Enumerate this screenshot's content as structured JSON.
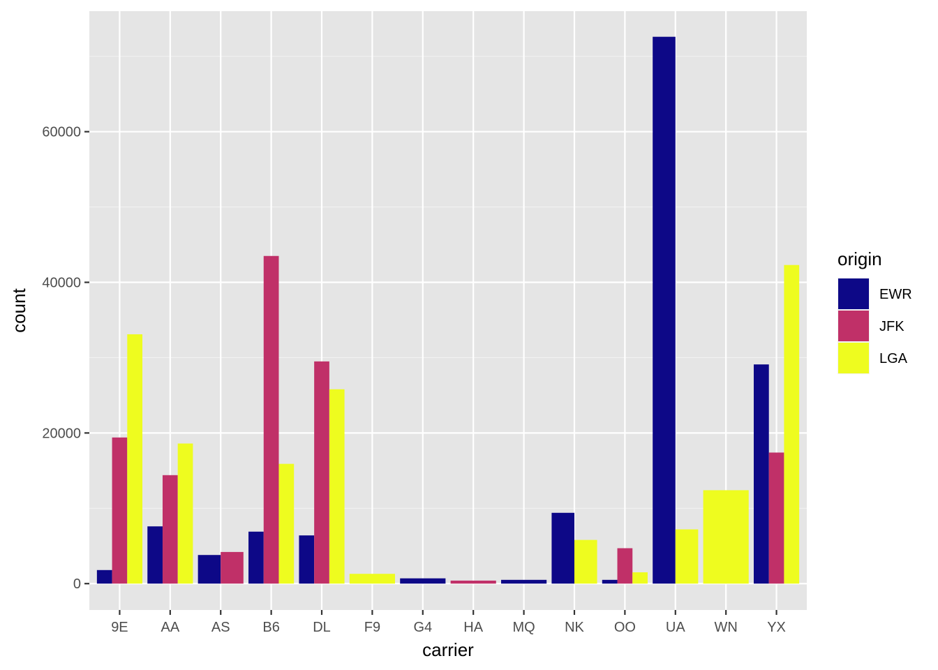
{
  "chart_data": {
    "type": "bar",
    "layout": "dodged",
    "xlabel": "carrier",
    "ylabel": "count",
    "ylim": [
      -3500,
      76000
    ],
    "yticks": [
      0,
      20000,
      40000,
      60000
    ],
    "ytick_labels": [
      "0",
      "20000",
      "40000",
      "60000"
    ],
    "grid": true,
    "legend": {
      "title": "origin",
      "position": "right"
    },
    "categories": [
      "9E",
      "AA",
      "AS",
      "B6",
      "DL",
      "F9",
      "G4",
      "HA",
      "MQ",
      "NK",
      "OO",
      "UA",
      "WN",
      "YX"
    ],
    "series": [
      {
        "name": "EWR",
        "color": "#0d0887",
        "values": [
          1800,
          7600,
          3800,
          6900,
          6400,
          null,
          700,
          null,
          500,
          9400,
          500,
          72600,
          null,
          29100
        ]
      },
      {
        "name": "JFK",
        "color": "#c03068",
        "values": [
          19400,
          14400,
          4200,
          43500,
          29500,
          null,
          null,
          400,
          null,
          null,
          4700,
          null,
          null,
          17400
        ]
      },
      {
        "name": "LGA",
        "color": "#eefc1f",
        "values": [
          33100,
          18600,
          null,
          15900,
          25800,
          1300,
          null,
          null,
          null,
          5800,
          1500,
          7200,
          12400,
          42300
        ]
      }
    ]
  }
}
